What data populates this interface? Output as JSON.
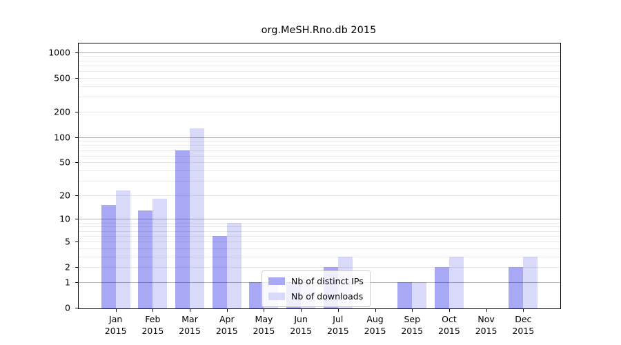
{
  "chart_data": {
    "type": "bar",
    "title": "org.MeSH.Rno.db 2015",
    "categories": [
      "Jan 2015",
      "Feb 2015",
      "Mar 2015",
      "Apr 2015",
      "May 2015",
      "Jun 2015",
      "Jul 2015",
      "Aug 2015",
      "Sep 2015",
      "Oct 2015",
      "Nov 2015",
      "Dec 2015"
    ],
    "series": [
      {
        "name": "Nb of distinct IPs",
        "color": "#a8a8f4",
        "values": [
          15,
          13,
          69,
          6,
          1,
          1,
          2,
          0,
          1,
          2,
          0,
          2
        ]
      },
      {
        "name": "Nb of downloads",
        "color": "#d9d9f9",
        "values": [
          23,
          18,
          126,
          9,
          1,
          1,
          3,
          0,
          1,
          3,
          0,
          3
        ]
      }
    ],
    "xlabel": "",
    "ylabel": "",
    "y_scale": "log10(1+value)",
    "y_tick_labels": [
      1000,
      500,
      200,
      100,
      50,
      20,
      10,
      5,
      2,
      1,
      0
    ],
    "y_major_gridline_values": [
      1,
      10,
      100,
      1000
    ],
    "ylim": [
      0,
      1250
    ],
    "grid": "on",
    "legend_position": "lower-center-inside",
    "background_color": "#ffffff",
    "axis_color": "#000000"
  }
}
